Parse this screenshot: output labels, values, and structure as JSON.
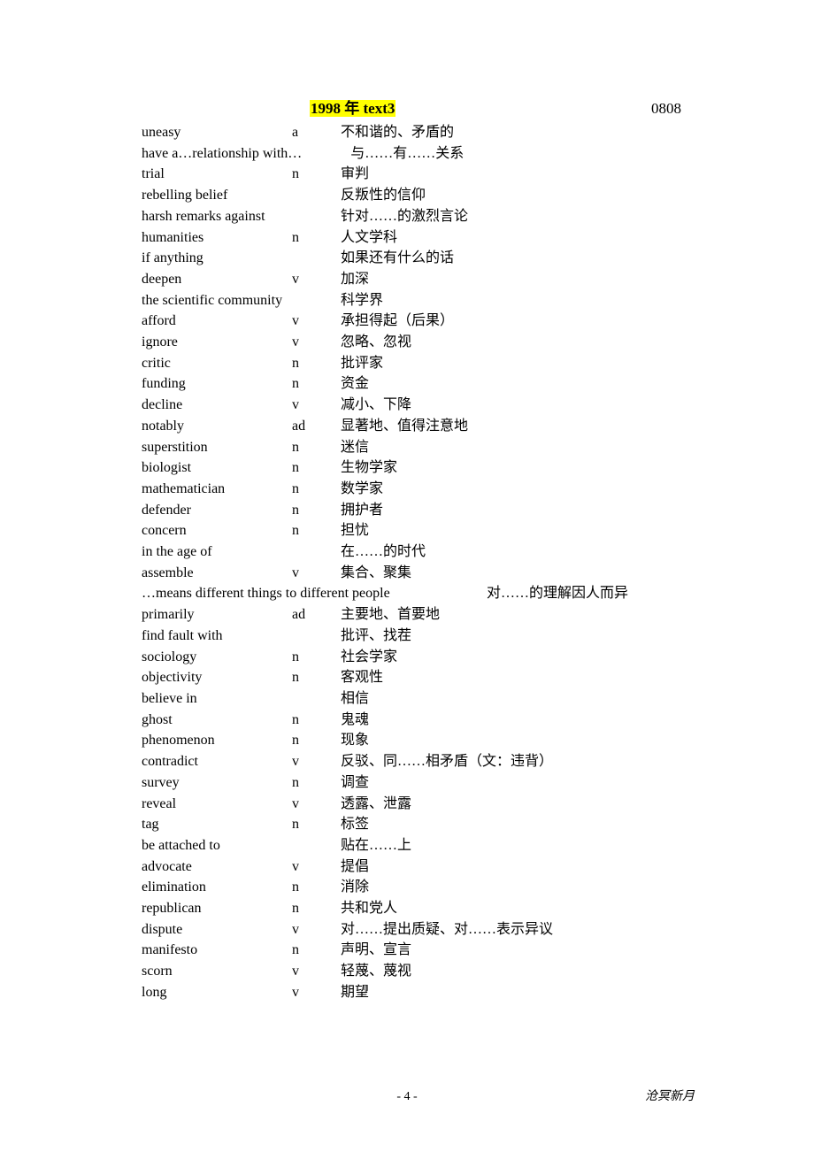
{
  "header": {
    "title": "1998 年   text3",
    "date_code": "0808"
  },
  "entries": [
    {
      "word": "uneasy",
      "pos": "a",
      "def": "不和谐的、矛盾的"
    },
    {
      "word": "have a…relationship with…",
      "pos": "",
      "def": "与……有……关系"
    },
    {
      "word": "trial",
      "pos": "n",
      "def": "审判"
    },
    {
      "word": "rebelling belief",
      "pos": "",
      "def": "反叛性的信仰"
    },
    {
      "word": "harsh remarks against",
      "pos": "",
      "def": "针对……的激烈言论"
    },
    {
      "word": "humanities",
      "pos": "n",
      "def": "人文学科"
    },
    {
      "word": "if anything",
      "pos": "",
      "def": "如果还有什么的话"
    },
    {
      "word": "deepen",
      "pos": "v",
      "def": "加深"
    },
    {
      "word": "the scientific community",
      "pos": "",
      "def": "科学界"
    },
    {
      "word": "afford",
      "pos": "v",
      "def": "承担得起（后果）"
    },
    {
      "word": "ignore",
      "pos": "v",
      "def": "忽略、忽视"
    },
    {
      "word": "critic",
      "pos": "n",
      "def": "批评家"
    },
    {
      "word": "funding",
      "pos": "n",
      "def": "资金"
    },
    {
      "word": "decline",
      "pos": "v",
      "def": "减小、下降"
    },
    {
      "word": "notably",
      "pos": "ad",
      "def": "显著地、值得注意地"
    },
    {
      "word": "superstition",
      "pos": "n",
      "def": "迷信"
    },
    {
      "word": "biologist",
      "pos": "n",
      "def": "生物学家"
    },
    {
      "word": "mathematician",
      "pos": "n",
      "def": "数学家"
    },
    {
      "word": "defender",
      "pos": "n",
      "def": "拥护者"
    },
    {
      "word": "concern",
      "pos": "n",
      "def": "担忧"
    },
    {
      "word": "in the age of",
      "pos": "",
      "def": "在……的时代"
    },
    {
      "word": "assemble",
      "pos": "v",
      "def": "集合、聚集"
    },
    {
      "word": "…means different things to different people",
      "pos": "",
      "def": "对……的理解因人而异",
      "wide": true
    },
    {
      "word": "primarily",
      "pos": "ad",
      "def": "主要地、首要地"
    },
    {
      "word": "find fault with",
      "pos": "",
      "def": "批评、找茬"
    },
    {
      "word": "sociology",
      "pos": "n",
      "def": "社会学家"
    },
    {
      "word": "objectivity",
      "pos": "n",
      "def": "客观性"
    },
    {
      "word": "believe in",
      "pos": "",
      "def": "相信"
    },
    {
      "word": "ghost",
      "pos": "n",
      "def": "鬼魂"
    },
    {
      "word": "phenomenon",
      "pos": "n",
      "def": "现象"
    },
    {
      "word": "contradict",
      "pos": "v",
      "def": "反驳、同……相矛盾（文：违背）"
    },
    {
      "word": "survey",
      "pos": "n",
      "def": "调查"
    },
    {
      "word": "reveal",
      "pos": "v",
      "def": "透露、泄露"
    },
    {
      "word": "tag",
      "pos": "n",
      "def": "标签"
    },
    {
      "word": "be attached to",
      "pos": "",
      "def": "贴在……上"
    },
    {
      "word": "advocate",
      "pos": "v",
      "def": "提倡"
    },
    {
      "word": "elimination",
      "pos": "n",
      "def": "消除"
    },
    {
      "word": "republican",
      "pos": "n",
      "def": "共和党人"
    },
    {
      "word": "dispute",
      "pos": "v",
      "def": "对……提出质疑、对……表示异议"
    },
    {
      "word": "manifesto",
      "pos": "n",
      "def": "声明、宣言"
    },
    {
      "word": "scorn",
      "pos": "v",
      "def": "轻蔑、蔑视"
    },
    {
      "word": "long",
      "pos": "v",
      "def": "期望"
    }
  ],
  "footer": {
    "page_num": "- 4 -",
    "signature": "沧冥新月"
  },
  "style": {
    "highlight_bg": "#ffff00",
    "page_bg": "#ffffff",
    "text_color": "#000000",
    "font_size_body": 16,
    "font_size_footer": 14
  }
}
